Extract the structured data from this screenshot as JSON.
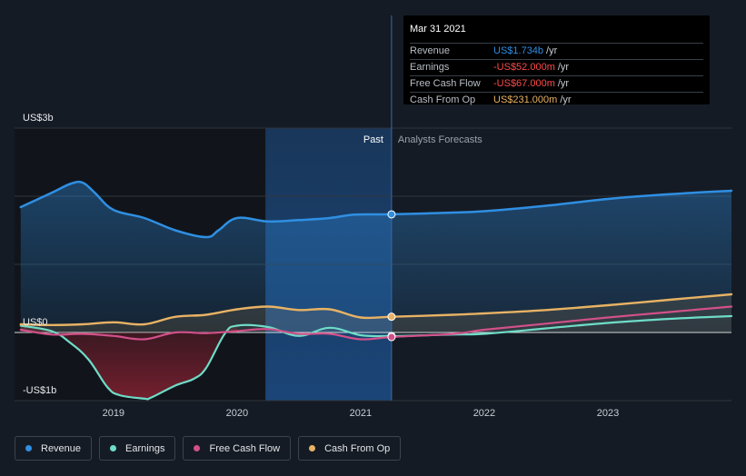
{
  "colors": {
    "revenue": "#2f8fe3",
    "earnings": "#6fdcc8",
    "free_cash_flow": "#d2508a",
    "cash_from_op": "#e8b264",
    "past_band": "#1c4d86",
    "grid": "#2f353d"
  },
  "tooltip": {
    "date": "Mar 31 2021",
    "rows": [
      {
        "label": "Revenue",
        "value": "US$1.734b",
        "unit": "/yr",
        "color": "#2f8fe3"
      },
      {
        "label": "Earnings",
        "value": "-US$52.000m",
        "unit": "/yr",
        "color": "#ff4a4a"
      },
      {
        "label": "Free Cash Flow",
        "value": "-US$67.000m",
        "unit": "/yr",
        "color": "#ff4a4a"
      },
      {
        "label": "Cash From Op",
        "value": "US$231.000m",
        "unit": "/yr",
        "color": "#e8b264"
      }
    ]
  },
  "legend": [
    {
      "label": "Revenue",
      "color": "#2f8fe3"
    },
    {
      "label": "Earnings",
      "color": "#6fdcc8"
    },
    {
      "label": "Free Cash Flow",
      "color": "#d2508a"
    },
    {
      "label": "Cash From Op",
      "color": "#e8b264"
    }
  ],
  "chart_data": {
    "type": "line",
    "title": "",
    "xlabel": "",
    "ylabel": "",
    "y_unit": "US$ billions",
    "ylim": [
      -1.0,
      3.0
    ],
    "xlim": [
      2018.2,
      2024.0
    ],
    "x_ticks": [
      2019,
      2020,
      2021,
      2022,
      2023
    ],
    "x_tick_labels": [
      "2019",
      "2020",
      "2021",
      "2022",
      "2023"
    ],
    "y_tick_labels": [
      {
        "value": 3.0,
        "label": "US$3b"
      },
      {
        "value": 0.0,
        "label": "US$0"
      },
      {
        "value": -1.0,
        "label": "-US$1b"
      }
    ],
    "gridlines_y": [
      3.0,
      2.0,
      1.0,
      0.0,
      -1.0
    ],
    "past_region": {
      "from": 2020.23,
      "to": 2021.25,
      "label": "Past"
    },
    "forecast_label": "Analysts Forecasts",
    "marker_x": 2021.25,
    "series": [
      {
        "name": "Revenue",
        "key": "revenue",
        "points": [
          [
            2018.25,
            1.84
          ],
          [
            2018.5,
            2.05
          ],
          [
            2018.65,
            2.18
          ],
          [
            2018.75,
            2.2
          ],
          [
            2018.85,
            2.05
          ],
          [
            2019.0,
            1.8
          ],
          [
            2019.25,
            1.68
          ],
          [
            2019.5,
            1.5
          ],
          [
            2019.75,
            1.4
          ],
          [
            2019.85,
            1.5
          ],
          [
            2020.0,
            1.68
          ],
          [
            2020.25,
            1.63
          ],
          [
            2020.5,
            1.65
          ],
          [
            2020.75,
            1.68
          ],
          [
            2020.95,
            1.73
          ],
          [
            2021.25,
            1.734
          ],
          [
            2021.75,
            1.76
          ],
          [
            2022.0,
            1.78
          ],
          [
            2022.5,
            1.86
          ],
          [
            2023.0,
            1.96
          ],
          [
            2023.5,
            2.03
          ],
          [
            2024.0,
            2.08
          ]
        ]
      },
      {
        "name": "Earnings",
        "key": "earnings",
        "points": [
          [
            2018.25,
            0.1
          ],
          [
            2018.5,
            0.02
          ],
          [
            2018.65,
            -0.15
          ],
          [
            2018.8,
            -0.4
          ],
          [
            2018.95,
            -0.8
          ],
          [
            2019.05,
            -0.92
          ],
          [
            2019.25,
            -0.97
          ],
          [
            2019.3,
            -0.96
          ],
          [
            2019.5,
            -0.78
          ],
          [
            2019.65,
            -0.68
          ],
          [
            2019.75,
            -0.52
          ],
          [
            2019.9,
            -0.02
          ],
          [
            2020.0,
            0.1
          ],
          [
            2020.25,
            0.08
          ],
          [
            2020.5,
            -0.05
          ],
          [
            2020.75,
            0.07
          ],
          [
            2021.0,
            -0.04
          ],
          [
            2021.25,
            -0.052
          ],
          [
            2021.75,
            -0.03
          ],
          [
            2022.0,
            -0.02
          ],
          [
            2022.5,
            0.06
          ],
          [
            2023.0,
            0.14
          ],
          [
            2023.5,
            0.2
          ],
          [
            2024.0,
            0.24
          ]
        ]
      },
      {
        "name": "Free Cash Flow",
        "key": "free_cash_flow",
        "points": [
          [
            2018.25,
            0.04
          ],
          [
            2018.5,
            -0.03
          ],
          [
            2018.75,
            -0.02
          ],
          [
            2019.0,
            -0.05
          ],
          [
            2019.25,
            -0.1
          ],
          [
            2019.5,
            0.0
          ],
          [
            2019.75,
            -0.01
          ],
          [
            2020.0,
            0.02
          ],
          [
            2020.25,
            0.05
          ],
          [
            2020.5,
            -0.02
          ],
          [
            2020.75,
            -0.02
          ],
          [
            2021.0,
            -0.1
          ],
          [
            2021.25,
            -0.067
          ],
          [
            2021.75,
            -0.02
          ],
          [
            2022.0,
            0.04
          ],
          [
            2022.5,
            0.13
          ],
          [
            2023.0,
            0.22
          ],
          [
            2023.5,
            0.3
          ],
          [
            2024.0,
            0.38
          ]
        ]
      },
      {
        "name": "Cash From Op",
        "key": "cash_from_op",
        "points": [
          [
            2018.25,
            0.12
          ],
          [
            2018.5,
            0.11
          ],
          [
            2018.75,
            0.12
          ],
          [
            2019.0,
            0.15
          ],
          [
            2019.25,
            0.12
          ],
          [
            2019.5,
            0.23
          ],
          [
            2019.75,
            0.26
          ],
          [
            2020.0,
            0.34
          ],
          [
            2020.25,
            0.38
          ],
          [
            2020.5,
            0.33
          ],
          [
            2020.75,
            0.34
          ],
          [
            2021.0,
            0.22
          ],
          [
            2021.25,
            0.231
          ],
          [
            2021.75,
            0.26
          ],
          [
            2022.0,
            0.28
          ],
          [
            2022.5,
            0.33
          ],
          [
            2023.0,
            0.4
          ],
          [
            2023.5,
            0.48
          ],
          [
            2024.0,
            0.56
          ]
        ]
      }
    ]
  }
}
